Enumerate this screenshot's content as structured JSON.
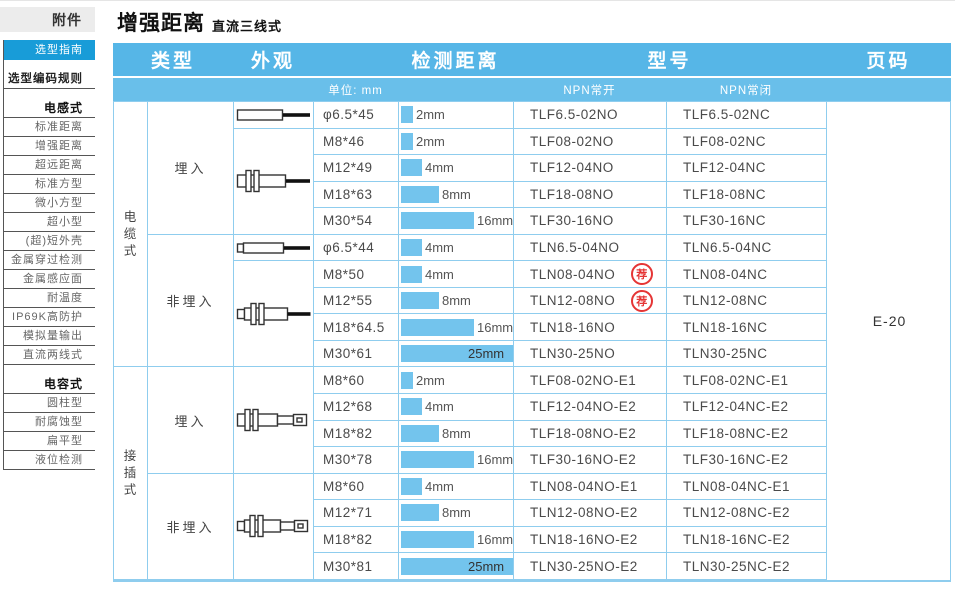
{
  "page_title": {
    "main": "增强距离",
    "sub": "直流三线式"
  },
  "sidebar": {
    "tab": "附件",
    "guide": "选型指南",
    "coding_rule": "选型编码规则",
    "sections": [
      {
        "title": "电感式",
        "items": [
          "标准距离",
          "增强距离",
          "超远距离",
          "标准方型",
          "微小方型",
          "超小型",
          "(超)短外壳",
          "金属穿过检测",
          "金属感应面",
          "耐温度",
          "IP69K高防护",
          "模拟量输出",
          "直流两线式"
        ]
      },
      {
        "title": "电容式",
        "items": [
          "圆柱型",
          "耐腐蚀型",
          "扁平型",
          "液位检测"
        ]
      }
    ]
  },
  "table": {
    "headers": {
      "type": "类型",
      "appearance": "外观",
      "distance": "检测距离",
      "model": "型号",
      "page": "页码"
    },
    "subheaders": {
      "unit": "单位: mm",
      "npn_no": "NPN常开",
      "npn_nc": "NPN常闭"
    },
    "groups": {
      "cable": "电缆式",
      "connector": "接插式"
    },
    "mount": {
      "flush": "埋入",
      "nonflush": "非埋入"
    },
    "badge_label": "荐",
    "page_code": "E-20",
    "drawings": [
      "cable-smooth-cylinder",
      "cable-threaded-cylinder",
      "cable-smooth-cylinder-protruding",
      "cable-threaded-cylinder-protruding",
      "connector-threaded-cylinder",
      "connector-threaded-cylinder-protruding"
    ],
    "rows": [
      {
        "size": "φ6.5*45",
        "bar": 2,
        "dist": "2mm",
        "no": "TLF6.5-02NO",
        "nc": "TLF6.5-02NC"
      },
      {
        "size": "M8*46",
        "bar": 2,
        "dist": "2mm",
        "no": "TLF08-02NO",
        "nc": "TLF08-02NC"
      },
      {
        "size": "M12*49",
        "bar": 4,
        "dist": "4mm",
        "no": "TLF12-04NO",
        "nc": "TLF12-04NC"
      },
      {
        "size": "M18*63",
        "bar": 8,
        "dist": "8mm",
        "no": "TLF18-08NO",
        "nc": "TLF18-08NC"
      },
      {
        "size": "M30*54",
        "bar": 16,
        "dist": "16mm",
        "no": "TLF30-16NO",
        "nc": "TLF30-16NC"
      },
      {
        "size": "φ6.5*44",
        "bar": 4,
        "dist": "4mm",
        "no": "TLN6.5-04NO",
        "nc": "TLN6.5-04NC"
      },
      {
        "size": "M8*50",
        "bar": 4,
        "dist": "4mm",
        "no": "TLN08-04NO",
        "nc": "TLN08-04NC",
        "recommended": true
      },
      {
        "size": "M12*55",
        "bar": 8,
        "dist": "8mm",
        "no": "TLN12-08NO",
        "nc": "TLN12-08NC",
        "recommended": true
      },
      {
        "size": "M18*64.5",
        "bar": 16,
        "dist": "16mm",
        "no": "TLN18-16NO",
        "nc": "TLN18-16NC"
      },
      {
        "size": "M30*61",
        "bar": 25,
        "dist": "25mm",
        "no": "TLN30-25NO",
        "nc": "TLN30-25NC"
      },
      {
        "size": "M8*60",
        "bar": 2,
        "dist": "2mm",
        "no": "TLF08-02NO-E1",
        "nc": "TLF08-02NC-E1"
      },
      {
        "size": "M12*68",
        "bar": 4,
        "dist": "4mm",
        "no": "TLF12-04NO-E2",
        "nc": "TLF12-04NC-E2"
      },
      {
        "size": "M18*82",
        "bar": 8,
        "dist": "8mm",
        "no": "TLF18-08NO-E2",
        "nc": "TLF18-08NC-E2"
      },
      {
        "size": "M30*78",
        "bar": 16,
        "dist": "16mm",
        "no": "TLF30-16NO-E2",
        "nc": "TLF30-16NC-E2"
      },
      {
        "size": "M8*60",
        "bar": 4,
        "dist": "4mm",
        "no": "TLN08-04NO-E1",
        "nc": "TLN08-04NC-E1"
      },
      {
        "size": "M12*71",
        "bar": 8,
        "dist": "8mm",
        "no": "TLN12-08NO-E2",
        "nc": "TLN12-08NC-E2"
      },
      {
        "size": "M18*82",
        "bar": 16,
        "dist": "16mm",
        "no": "TLN18-16NO-E2",
        "nc": "TLN18-16NC-E2"
      },
      {
        "size": "M30*81",
        "bar": 25,
        "dist": "25mm",
        "no": "TLN30-25NO-E2",
        "nc": "TLN30-25NC-E2"
      }
    ]
  },
  "colors": {
    "header_blue": "#56b6e7",
    "subheader_blue": "#69bfea",
    "bar_blue": "#73c4ed",
    "border_blue": "#8fcdee",
    "sidebar_selected_blue": "#189cd8",
    "badge_red": "#e53535"
  }
}
